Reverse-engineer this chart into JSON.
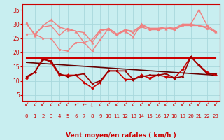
{
  "bg_color": "#c8eef0",
  "grid_color": "#a8d8dc",
  "xlabel": "Vent moyen/en rafales ( km/h )",
  "xlabel_color": "#cc0000",
  "xlabel_fontsize": 6.5,
  "tick_color": "#cc0000",
  "ylim": [
    3,
    37
  ],
  "xlim": [
    -0.5,
    23.5
  ],
  "yticks": [
    5,
    10,
    15,
    20,
    25,
    30,
    35
  ],
  "xticks": [
    0,
    1,
    2,
    3,
    4,
    5,
    6,
    7,
    8,
    9,
    10,
    11,
    12,
    13,
    14,
    15,
    16,
    17,
    18,
    19,
    20,
    21,
    22,
    23
  ],
  "series": [
    {
      "name": "rafales_top_marked",
      "x": [
        0,
        1,
        2,
        3,
        4,
        5,
        6,
        7,
        8,
        9,
        10,
        11,
        12,
        13,
        14,
        15,
        16,
        17,
        18,
        19,
        20,
        21,
        22,
        23
      ],
      "y": [
        30.5,
        26.0,
        29.5,
        31.5,
        29.0,
        28.0,
        27.5,
        27.0,
        23.5,
        27.5,
        28.5,
        26.5,
        27.5,
        25.5,
        30.0,
        28.5,
        28.5,
        28.5,
        28.5,
        30.0,
        30.0,
        35.0,
        29.5,
        27.5
      ],
      "color": "#f08080",
      "linewidth": 1.0,
      "marker": "^",
      "markersize": 2.5,
      "zorder": 2
    },
    {
      "name": "rafales_top_plain",
      "x": [
        0,
        1,
        2,
        3,
        4,
        5,
        6,
        7,
        8,
        9,
        10,
        11,
        12,
        13,
        14,
        15,
        16,
        17,
        18,
        19,
        20,
        21,
        22,
        23
      ],
      "y": [
        30.0,
        26.5,
        29.0,
        29.5,
        26.0,
        28.5,
        27.5,
        23.5,
        24.5,
        28.0,
        28.0,
        26.0,
        28.0,
        27.5,
        29.5,
        28.5,
        28.5,
        29.0,
        28.5,
        29.5,
        30.0,
        29.5,
        29.0,
        27.0
      ],
      "color": "#f08080",
      "linewidth": 1.0,
      "marker": null,
      "markersize": 0,
      "zorder": 2
    },
    {
      "name": "vent_moyen_light",
      "x": [
        0,
        1,
        2,
        3,
        4,
        5,
        6,
        7,
        8,
        9,
        10,
        11,
        12,
        13,
        14,
        15,
        16,
        17,
        18,
        19,
        20,
        21,
        22,
        23
      ],
      "y": [
        26.5,
        26.5,
        25.0,
        25.0,
        21.0,
        20.5,
        23.5,
        23.5,
        20.5,
        24.5,
        28.5,
        26.5,
        28.0,
        27.0,
        29.0,
        28.0,
        28.0,
        28.5,
        28.0,
        29.5,
        29.5,
        29.5,
        28.5,
        27.5
      ],
      "color": "#f08080",
      "linewidth": 1.0,
      "marker": "o",
      "markersize": 2.0,
      "zorder": 2
    },
    {
      "name": "trend_flat",
      "x": [
        0,
        23
      ],
      "y": [
        18.0,
        18.0
      ],
      "color": "#cc0000",
      "linewidth": 1.5,
      "marker": null,
      "markersize": 0,
      "zorder": 3
    },
    {
      "name": "trend_decline",
      "x": [
        0,
        23
      ],
      "y": [
        16.5,
        12.0
      ],
      "color": "#660000",
      "linewidth": 1.2,
      "marker": null,
      "markersize": 0,
      "zorder": 3
    },
    {
      "name": "vent_moyen_dark",
      "x": [
        0,
        1,
        2,
        3,
        4,
        5,
        6,
        7,
        8,
        9,
        10,
        11,
        12,
        13,
        14,
        15,
        16,
        17,
        18,
        19,
        20,
        21,
        22,
        23
      ],
      "y": [
        11.0,
        13.0,
        18.0,
        16.5,
        12.0,
        12.0,
        12.0,
        9.5,
        7.5,
        9.5,
        13.5,
        13.5,
        10.5,
        10.5,
        12.0,
        11.0,
        12.0,
        11.5,
        11.0,
        14.0,
        18.5,
        15.5,
        13.0,
        12.0
      ],
      "color": "#cc0000",
      "linewidth": 1.2,
      "marker": "D",
      "markersize": 2.0,
      "zorder": 4
    },
    {
      "name": "rafales_dark",
      "x": [
        0,
        1,
        2,
        3,
        4,
        5,
        6,
        7,
        8,
        9,
        10,
        11,
        12,
        13,
        14,
        15,
        16,
        17,
        18,
        19,
        20,
        21,
        22,
        23
      ],
      "y": [
        11.5,
        13.0,
        17.5,
        17.0,
        12.5,
        11.5,
        12.0,
        12.5,
        9.0,
        10.0,
        13.5,
        13.5,
        13.5,
        10.5,
        11.5,
        12.0,
        12.0,
        12.5,
        11.0,
        11.5,
        18.5,
        15.5,
        12.5,
        12.5
      ],
      "color": "#990000",
      "linewidth": 1.2,
      "marker": "o",
      "markersize": 2.0,
      "zorder": 4
    }
  ],
  "arrow_char": "↙",
  "arrow_angles": [
    225,
    225,
    225,
    225,
    225,
    225,
    200,
    180,
    270,
    225,
    225,
    225,
    225,
    225,
    225,
    225,
    225,
    225,
    225,
    225,
    225,
    225,
    225,
    225
  ]
}
